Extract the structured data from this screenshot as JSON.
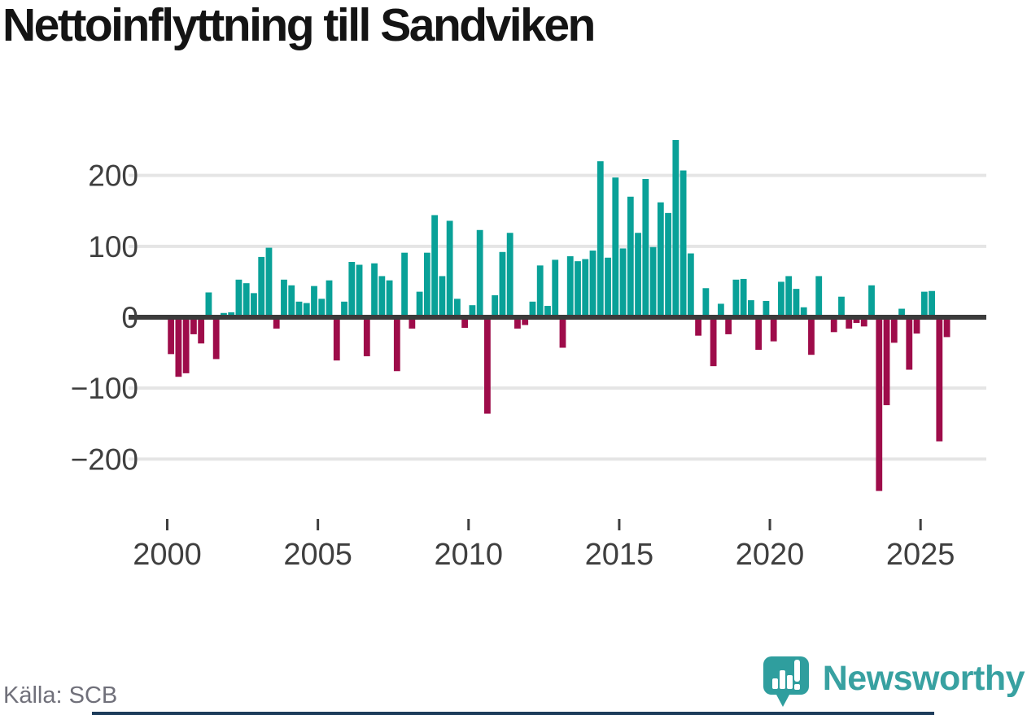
{
  "title": "Nettoinflyttning till Sandviken",
  "source": "Källa: SCB",
  "branding": {
    "name": "Newsworthy",
    "logo_icon": "speech-bubble-with-bar-chart-and-exclamation"
  },
  "colors": {
    "positive_bar": "#09a198",
    "negative_bar": "#9e0c4a",
    "axis_line": "#3b3b3b",
    "gridline": "#e5e5e5",
    "tick_text": "#3f3f3f",
    "title_text": "#141414",
    "source_text": "#70707a",
    "brand_teal": "#38a1a1",
    "bottom_bar": "#1d3c5b"
  },
  "chart_data": {
    "type": "bar",
    "title": "Nettoinflyttning till Sandviken",
    "xlabel": "",
    "ylabel": "",
    "frequency": "quarterly",
    "start_year": 2000,
    "start_quarter": 1,
    "categories_note": "104 consecutive quarters, 2000Q1 to 2025Q4",
    "values": [
      -52,
      -84,
      -79,
      -24,
      -37,
      35,
      -59,
      6,
      7,
      53,
      48,
      34,
      85,
      98,
      -16,
      53,
      45,
      22,
      20,
      44,
      26,
      52,
      -61,
      22,
      78,
      74,
      -55,
      76,
      58,
      52,
      -76,
      91,
      -16,
      36,
      91,
      144,
      58,
      136,
      26,
      -15,
      17,
      123,
      -136,
      31,
      92,
      119,
      -16,
      -11,
      22,
      73,
      16,
      81,
      -43,
      86,
      79,
      82,
      94,
      220,
      84,
      197,
      97,
      170,
      119,
      195,
      99,
      162,
      147,
      250,
      207,
      90,
      -26,
      41,
      -69,
      19,
      -24,
      53,
      54,
      24,
      -46,
      23,
      -34,
      50,
      58,
      40,
      14,
      -53,
      58,
      0,
      -21,
      29,
      -16,
      -8,
      -13,
      45,
      -245,
      -124,
      -36,
      12,
      -74,
      -23,
      36,
      37,
      -175,
      -28
    ],
    "y_ticks": [
      200,
      100,
      0,
      -100,
      -200
    ],
    "y_tick_labels": [
      "200",
      "100",
      "0",
      "−100",
      "−200"
    ],
    "x_tick_years": [
      2000,
      2005,
      2010,
      2015,
      2020,
      2025
    ],
    "x_tick_labels": [
      "2000",
      "2005",
      "2010",
      "2015",
      "2020",
      "2025"
    ],
    "ylim": [
      -260,
      262
    ],
    "grid": "horizontal",
    "legend": "none",
    "positive_color": "#09a198",
    "negative_color": "#9e0c4a"
  }
}
